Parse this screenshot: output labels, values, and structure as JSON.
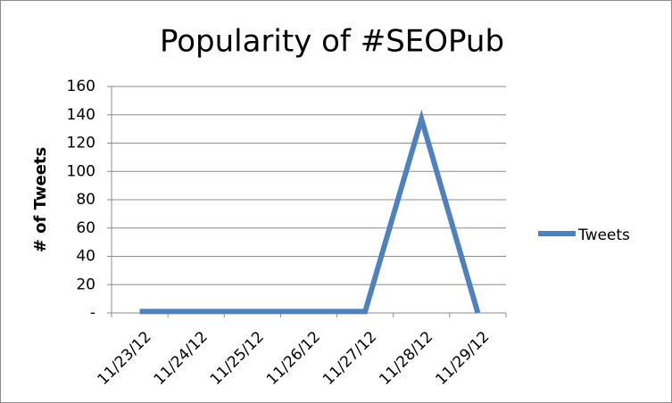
{
  "chart_data": {
    "type": "line",
    "title": "Popularity of #SEOPub",
    "y_label": "# of Tweets",
    "categories": [
      "11/23/12",
      "11/24/12",
      "11/25/12",
      "11/26/12",
      "11/27/12",
      "11/28/12",
      "11/29/12"
    ],
    "series": [
      {
        "name": "Tweets",
        "color": "#4f81bd",
        "values": [
          1,
          1,
          1,
          1,
          1,
          137,
          0
        ]
      }
    ],
    "ylim": [
      0,
      160
    ],
    "yticks": [
      {
        "value": 0,
        "label": "-"
      },
      20,
      40,
      60,
      80,
      100,
      120,
      140,
      160
    ],
    "grid": true,
    "legend": "right"
  }
}
